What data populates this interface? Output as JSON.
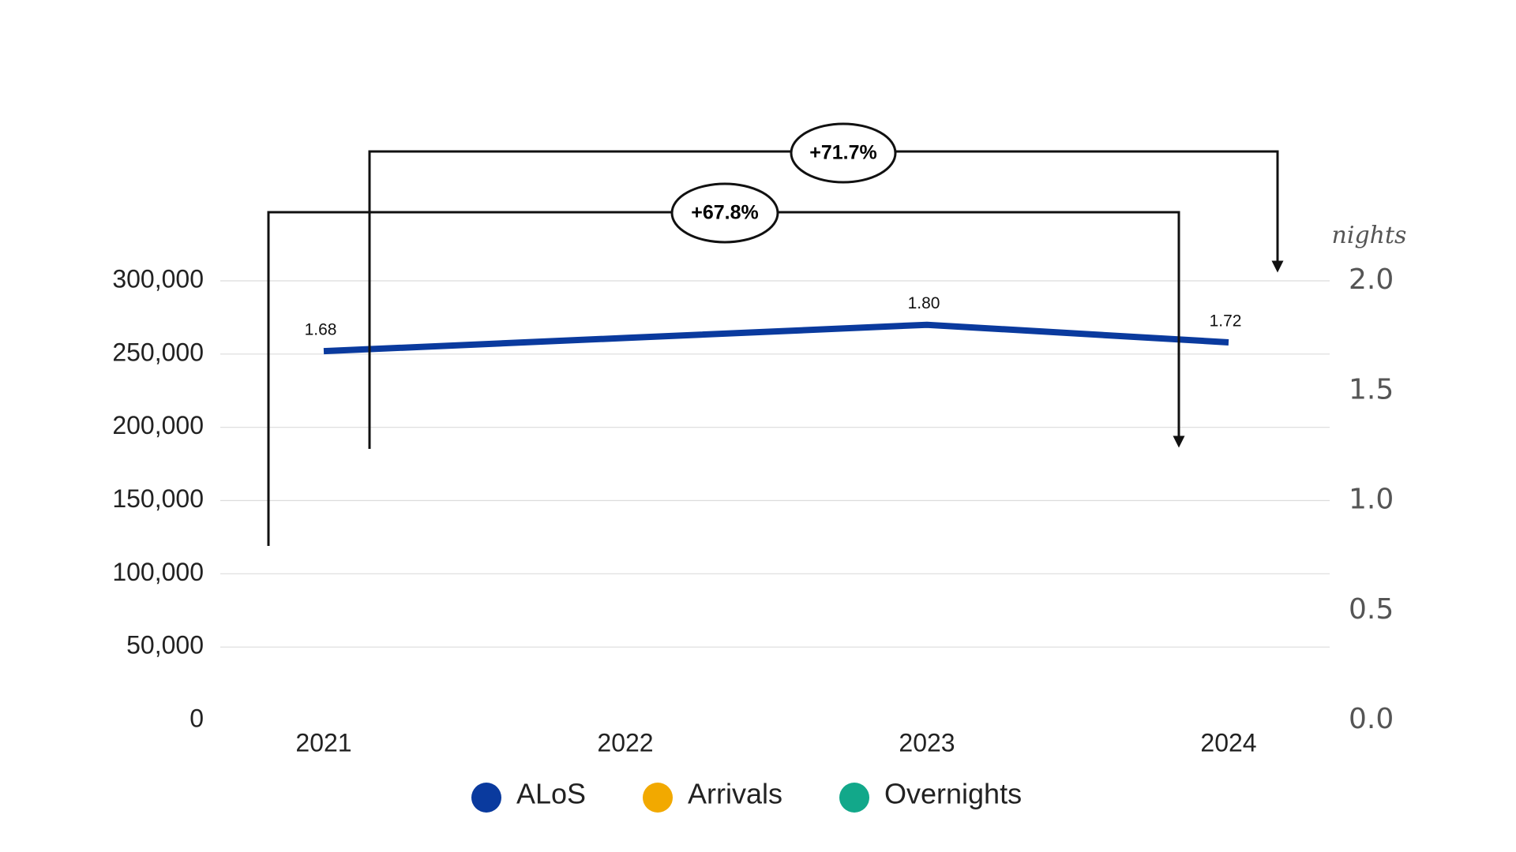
{
  "chart_data": {
    "type": "line",
    "categories": [
      "2021",
      "2022",
      "2023",
      "2024"
    ],
    "series": [
      {
        "name": "ALoS",
        "color": "#0a3a9e",
        "axis": "y2",
        "values": [
          1.68,
          1.74,
          1.8,
          1.72
        ],
        "value_labels": [
          "1.68",
          null,
          "1.80",
          "1.72"
        ]
      },
      {
        "name": "Arrivals",
        "color": "#f2a900",
        "values": [
          null,
          null,
          null,
          null
        ]
      },
      {
        "name": "Overnights",
        "color": "#12a88a",
        "values": [
          null,
          null,
          null,
          null
        ]
      }
    ],
    "ylim": [
      0,
      300000
    ],
    "yticks": [
      {
        "value": 0,
        "label": "0"
      },
      {
        "value": 50000,
        "label": "50,000"
      },
      {
        "value": 100000,
        "label": "100,000"
      },
      {
        "value": 150000,
        "label": "150,000"
      },
      {
        "value": 200000,
        "label": "200,000"
      },
      {
        "value": 250000,
        "label": "250,000"
      },
      {
        "value": 300000,
        "label": "300,000"
      }
    ],
    "y2lim": [
      0,
      2
    ],
    "y2ticks": [
      {
        "value": 0,
        "label": "0.0"
      },
      0.5,
      {
        "value": 1,
        "label": "1.0"
      },
      1.5,
      {
        "value": 2,
        "label": "2.0"
      }
    ],
    "y2label": "nights",
    "grid": true,
    "annotations": [
      {
        "text": "+71.7%"
      },
      {
        "text": "+67.8%"
      }
    ]
  }
}
